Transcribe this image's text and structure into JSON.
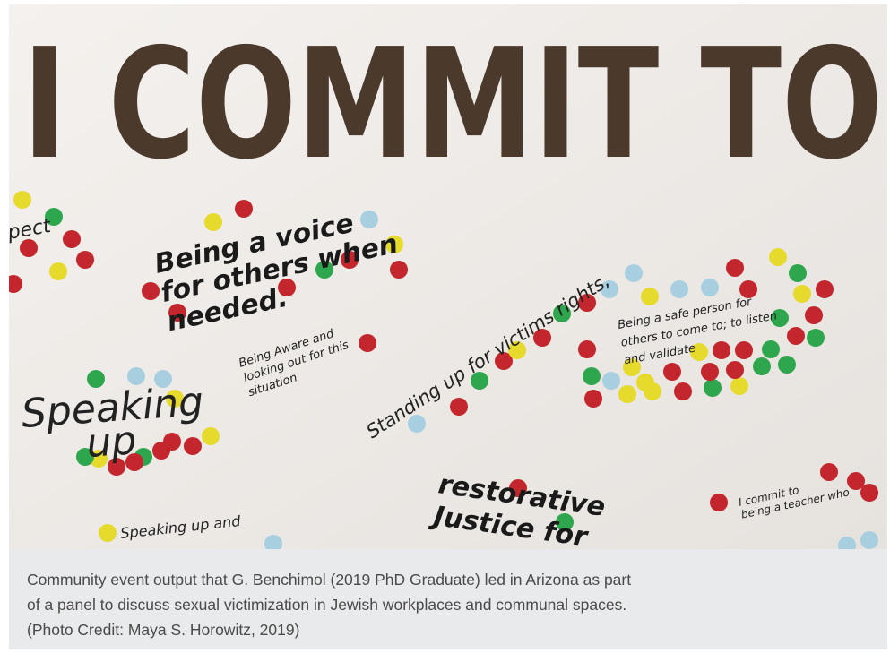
{
  "photo": {
    "heading": "I COMMIT TO",
    "notes": [
      {
        "lines": [
          "pect"
        ]
      },
      {
        "lines": [
          "Being a voice",
          "for others when",
          "needed."
        ]
      },
      {
        "lines": [
          "Being Aware and",
          "looking out for this",
          "situation"
        ]
      },
      {
        "lines": [
          "Speaking",
          "up"
        ]
      },
      {
        "lines": [
          "Standing up for victims rights,"
        ]
      },
      {
        "lines": [
          "Being a safe person for",
          "others to come to; to listen",
          "and validate"
        ]
      },
      {
        "lines": [
          "restorative",
          "Justice for"
        ]
      },
      {
        "lines": [
          "Speaking up and"
        ]
      },
      {
        "lines": [
          "I commit to",
          "being a teacher who"
        ]
      }
    ]
  },
  "caption": {
    "lines": [
      "Community event output that G. Benchimol (2019 PhD Graduate) led in Arizona as part",
      "of a panel to discuss sexual victimization in Jewish workplaces and communal spaces.",
      "(Photo Credit: Maya S. Horowitz, 2019)"
    ]
  }
}
